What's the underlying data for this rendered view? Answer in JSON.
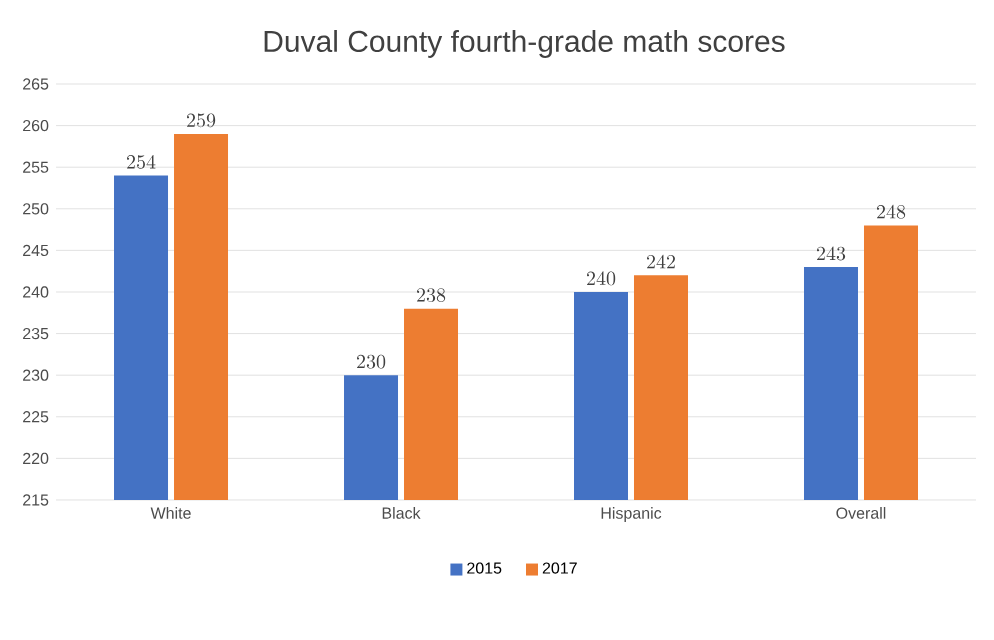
{
  "chart_data": {
    "type": "bar",
    "title": "Duval County fourth-grade math scores",
    "categories": [
      "White",
      "Black",
      "Hispanic",
      "Overall"
    ],
    "series": [
      {
        "name": "2015",
        "color": "#4472c4",
        "values": [
          254,
          230,
          240,
          243
        ]
      },
      {
        "name": "2017",
        "color": "#ed7d31",
        "values": [
          259,
          238,
          242,
          248
        ]
      }
    ],
    "ylim": [
      215,
      265
    ],
    "yticks": [
      215,
      220,
      225,
      230,
      235,
      240,
      245,
      250,
      255,
      260,
      265
    ],
    "grid": "y",
    "legend": "bottom",
    "data_labels": true
  }
}
